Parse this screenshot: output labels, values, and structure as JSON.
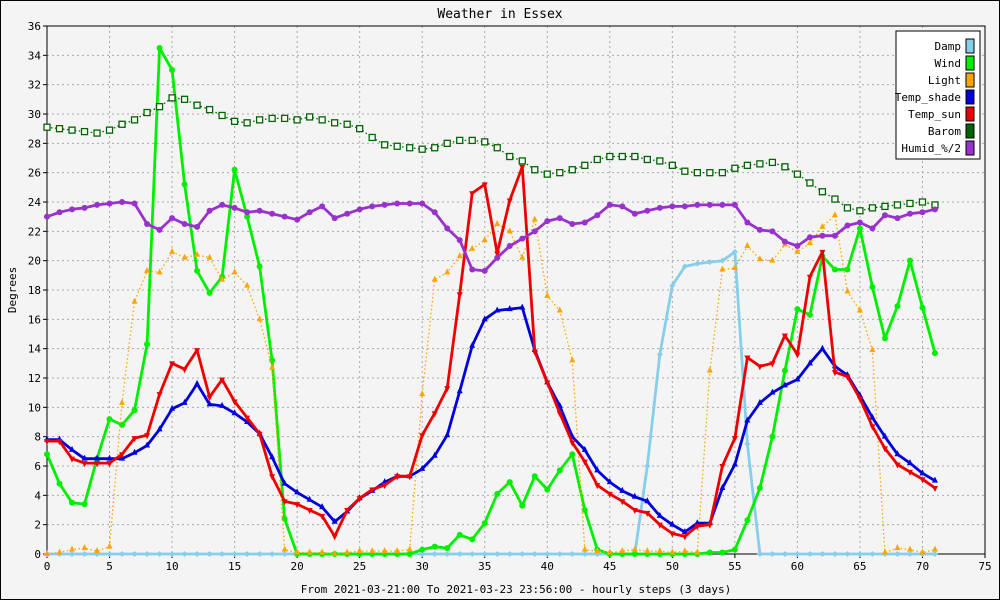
{
  "chart_data": {
    "type": "line",
    "title": "Weather in Essex",
    "ylabel": "Degrees",
    "xlabel": "From 2021-03-21:00 To 2021-03-23 23:56:00 - hourly steps (3 days)",
    "xlim": [
      0,
      75
    ],
    "ylim": [
      0,
      36
    ],
    "xticks": [
      0,
      5,
      10,
      15,
      20,
      25,
      30,
      35,
      40,
      45,
      50,
      55,
      60,
      65,
      70,
      75
    ],
    "yticks": [
      0,
      2,
      4,
      6,
      8,
      10,
      12,
      14,
      16,
      18,
      20,
      22,
      24,
      26,
      28,
      30,
      32,
      34,
      36
    ],
    "grid": true,
    "legend_position": "top-right",
    "series": [
      {
        "name": "Damp",
        "color": "#87CEEB",
        "marker": "diamond",
        "dotted": false,
        "values": [
          0,
          0,
          0,
          0,
          0,
          0,
          0,
          0,
          0,
          0,
          0,
          0,
          0,
          0,
          0,
          0,
          0,
          0,
          0,
          0,
          0,
          0,
          0,
          0,
          0,
          0,
          0,
          0,
          0,
          0,
          0,
          0,
          0,
          0,
          0,
          0,
          0,
          0,
          0,
          0,
          0,
          0,
          0,
          0,
          0,
          0,
          0,
          0,
          6.0,
          13.6,
          18.3,
          19.6,
          19.8,
          19.9,
          20.0,
          20.6,
          7.5,
          0,
          0,
          0,
          0,
          0,
          0,
          0,
          0,
          0,
          0,
          0,
          0,
          0,
          0,
          0
        ]
      },
      {
        "name": "Wind",
        "color": "#00EE00",
        "marker": "circle",
        "dotted": false,
        "values": [
          6.8,
          4.8,
          3.5,
          3.4,
          6.5,
          9.2,
          8.8,
          9.8,
          14.3,
          34.5,
          33.0,
          25.2,
          19.3,
          17.8,
          18.9,
          26.2,
          23.0,
          19.6,
          13.2,
          2.4,
          0,
          0,
          0,
          0,
          0,
          0,
          0,
          0,
          0,
          0,
          0.3,
          0.5,
          0.4,
          1.3,
          1.0,
          2.1,
          4.1,
          4.9,
          3.3,
          5.3,
          4.4,
          5.7,
          6.8,
          3.0,
          0.3,
          0,
          0,
          0,
          0,
          0,
          0,
          0,
          0,
          0.1,
          0.1,
          0.3,
          2.3,
          4.5,
          8.0,
          12.5,
          16.7,
          16.3,
          20.3,
          19.4,
          19.4,
          22.2,
          18.2,
          14.7,
          16.9,
          20.0,
          16.8,
          13.7
        ]
      },
      {
        "name": "Light",
        "color": "#FFA500",
        "marker": "triangle-up",
        "dotted": true,
        "values": [
          0,
          0.1,
          0.3,
          0.4,
          0.2,
          0.5,
          10.3,
          17.2,
          19.3,
          19.2,
          20.6,
          20.2,
          20.4,
          20.2,
          18.7,
          19.2,
          18.3,
          16.0,
          12.7,
          0.3,
          0.1,
          0.1,
          0.1,
          0,
          0.1,
          0.2,
          0.2,
          0.2,
          0.2,
          0.3,
          10.9,
          18.7,
          19.2,
          20.3,
          20.8,
          21.4,
          22.5,
          22.0,
          20.2,
          22.8,
          17.6,
          16.6,
          13.2,
          0.3,
          0.2,
          0.1,
          0.2,
          0.3,
          0.2,
          0.2,
          0.1,
          0.2,
          0.1,
          12.5,
          19.4,
          19.5,
          21.0,
          20.1,
          20.0,
          21.1,
          20.6,
          21.2,
          22.3,
          23.1,
          17.9,
          16.6,
          13.9,
          0.1,
          0.4,
          0.3,
          0.1,
          0.3
        ]
      },
      {
        "name": "Temp_shade",
        "color": "#0000DD",
        "marker": "triangle-up",
        "dotted": false,
        "values": [
          7.8,
          7.8,
          7.1,
          6.5,
          6.5,
          6.5,
          6.5,
          6.9,
          7.4,
          8.5,
          9.9,
          10.3,
          11.6,
          10.2,
          10.1,
          9.6,
          9.0,
          8.2,
          6.6,
          4.8,
          4.2,
          3.7,
          3.2,
          2.2,
          2.9,
          3.8,
          4.3,
          4.9,
          5.3,
          5.3,
          5.8,
          6.7,
          8.1,
          11.1,
          14.2,
          16.0,
          16.6,
          16.7,
          16.8,
          13.9,
          11.7,
          10.1,
          8.0,
          7.1,
          5.7,
          4.9,
          4.3,
          3.9,
          3.6,
          2.6,
          2.0,
          1.5,
          2.1,
          2.1,
          4.5,
          6.1,
          9.1,
          10.3,
          11.0,
          11.5,
          11.9,
          13.0,
          14.0,
          12.8,
          12.2,
          10.8,
          9.3,
          8.0,
          6.8,
          6.2,
          5.5,
          5.0
        ]
      },
      {
        "name": "Temp_sun",
        "color": "#EE0000",
        "marker": "triangle-down",
        "dotted": false,
        "values": [
          7.7,
          7.7,
          6.5,
          6.2,
          6.2,
          6.2,
          6.8,
          7.9,
          8.1,
          10.9,
          13.0,
          12.6,
          13.9,
          10.7,
          11.9,
          10.4,
          9.3,
          8.2,
          5.3,
          3.6,
          3.4,
          3.0,
          2.6,
          1.2,
          3.0,
          3.8,
          4.4,
          4.7,
          5.3,
          5.3,
          8.1,
          9.6,
          11.3,
          17.7,
          24.6,
          25.2,
          20.5,
          24.1,
          26.4,
          13.8,
          11.7,
          9.6,
          7.6,
          6.3,
          4.7,
          4.1,
          3.6,
          3.0,
          2.8,
          2.0,
          1.4,
          1.2,
          1.9,
          2.0,
          6.0,
          7.9,
          13.4,
          12.8,
          13.0,
          14.9,
          13.6,
          18.9,
          20.6,
          12.4,
          12.1,
          10.6,
          8.7,
          7.2,
          6.1,
          5.6,
          5.1,
          4.5
        ]
      },
      {
        "name": "Barom",
        "color": "#006400",
        "marker": "square-open",
        "dotted": true,
        "values": [
          29.1,
          29.0,
          28.9,
          28.8,
          28.7,
          28.9,
          29.3,
          29.6,
          30.1,
          30.5,
          31.1,
          31.0,
          30.6,
          30.3,
          29.9,
          29.5,
          29.4,
          29.6,
          29.7,
          29.7,
          29.6,
          29.8,
          29.6,
          29.4,
          29.3,
          29.0,
          28.4,
          27.9,
          27.8,
          27.7,
          27.6,
          27.7,
          28.0,
          28.2,
          28.2,
          28.1,
          27.7,
          27.1,
          26.8,
          26.2,
          25.9,
          26.0,
          26.2,
          26.5,
          26.9,
          27.1,
          27.1,
          27.1,
          26.9,
          26.8,
          26.5,
          26.1,
          26.0,
          26.0,
          26.0,
          26.3,
          26.5,
          26.6,
          26.7,
          26.4,
          25.9,
          25.3,
          24.7,
          24.2,
          23.6,
          23.4,
          23.6,
          23.7,
          23.8,
          23.9,
          24.0,
          23.8
        ]
      },
      {
        "name": "Humid_%/2",
        "color": "#9932CC",
        "marker": "circle",
        "dotted": false,
        "values": [
          23.0,
          23.3,
          23.5,
          23.6,
          23.8,
          23.9,
          24.0,
          23.9,
          22.5,
          22.1,
          22.9,
          22.5,
          22.3,
          23.4,
          23.8,
          23.6,
          23.3,
          23.4,
          23.2,
          23.0,
          22.8,
          23.3,
          23.7,
          22.9,
          23.2,
          23.5,
          23.7,
          23.8,
          23.9,
          23.9,
          23.9,
          23.3,
          22.2,
          21.4,
          19.4,
          19.3,
          20.2,
          21.0,
          21.5,
          22.0,
          22.7,
          22.9,
          22.5,
          22.6,
          23.1,
          23.8,
          23.7,
          23.2,
          23.4,
          23.6,
          23.7,
          23.7,
          23.8,
          23.8,
          23.8,
          23.8,
          22.6,
          22.1,
          22.0,
          21.3,
          21.0,
          21.6,
          21.7,
          21.7,
          22.4,
          22.6,
          22.2,
          23.1,
          22.9,
          23.2,
          23.3,
          23.5
        ]
      }
    ]
  }
}
